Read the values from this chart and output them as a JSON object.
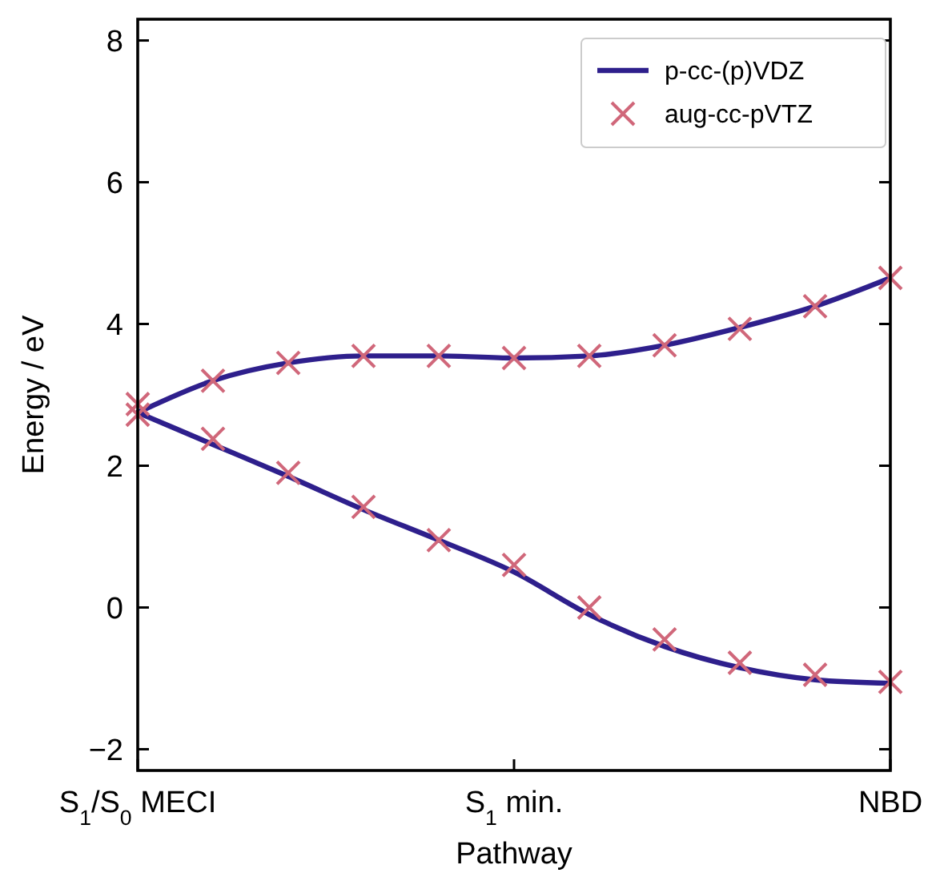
{
  "chart_data": {
    "type": "line",
    "xlabel": "Pathway",
    "ylabel": "Energy / eV",
    "categories": [
      "S$_{1}$/S$_{0}$ MECI",
      null,
      null,
      null,
      null,
      "S$_{1}$ min.",
      null,
      null,
      null,
      null,
      "NBD"
    ],
    "ylim": [
      -2.3,
      8.3
    ],
    "yticks": [
      {
        "value": -2,
        "label": "−2"
      },
      0,
      2,
      4,
      6,
      8
    ],
    "grid": false,
    "legend": "top right",
    "series": [
      {
        "name": "p-cc-(p)VDZ",
        "color": "#2e1f8c",
        "marker": "none",
        "line_style": "solid",
        "values": [
          2.75,
          3.2,
          3.45,
          3.55,
          3.55,
          3.52,
          3.55,
          3.7,
          3.95,
          4.25,
          4.65
        ]
      },
      {
        "color": "#2e1f8c",
        "marker": "none",
        "line_style": "solid",
        "values": [
          2.75,
          2.3,
          1.85,
          1.38,
          0.95,
          0.5,
          -0.1,
          -0.55,
          -0.85,
          -1.02,
          -1.07
        ]
      },
      {
        "name": "aug-cc-pVTZ",
        "type": "scatter",
        "color": "#d0677a",
        "marker": "cross",
        "values": [
          2.87,
          3.2,
          3.45,
          3.55,
          3.55,
          3.52,
          3.55,
          3.7,
          3.93,
          4.25,
          4.65
        ]
      },
      {
        "type": "scatter",
        "color": "#d0677a",
        "marker": "cross",
        "values": [
          2.72,
          2.38,
          1.9,
          1.42,
          0.95,
          0.6,
          0.0,
          -0.45,
          -0.78,
          -0.95,
          -1.05
        ]
      }
    ]
  }
}
